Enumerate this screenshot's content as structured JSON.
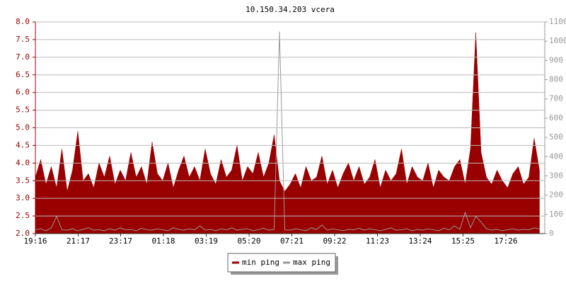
{
  "chart_data": {
    "type": "area-line",
    "title": "10.150.34.203 vcera",
    "x": [
      0,
      15,
      30,
      45,
      60,
      75,
      90,
      105,
      120,
      135,
      150,
      165,
      180,
      195,
      210,
      225,
      240,
      255,
      270,
      285,
      300,
      315,
      330,
      345,
      360,
      375,
      390,
      405,
      420,
      435,
      450,
      465,
      480,
      495,
      510,
      525,
      540,
      555,
      570,
      585,
      600,
      615,
      630,
      645,
      660,
      675,
      690,
      705,
      720,
      735,
      750,
      765,
      780,
      795,
      810,
      825,
      840,
      855,
      870,
      885,
      900,
      915,
      930,
      945,
      960,
      975,
      990,
      1005,
      1020,
      1035,
      1050,
      1065,
      1080,
      1095,
      1110,
      1125,
      1140,
      1155,
      1170,
      1185,
      1200,
      1215,
      1230,
      1245,
      1260,
      1275,
      1290,
      1305,
      1320,
      1335,
      1350,
      1365,
      1380,
      1395,
      1410,
      1425
    ],
    "xlim": [
      0,
      1440
    ],
    "xticks": [
      {
        "value": 0,
        "label": "19:16"
      },
      {
        "value": 121,
        "label": "21:17"
      },
      {
        "value": 241,
        "label": "23:17"
      },
      {
        "value": 362,
        "label": "01:18"
      },
      {
        "value": 483,
        "label": "03:19"
      },
      {
        "value": 604,
        "label": "05:20"
      },
      {
        "value": 725,
        "label": "07:21"
      },
      {
        "value": 846,
        "label": "09:22"
      },
      {
        "value": 967,
        "label": "11:23"
      },
      {
        "value": 1088,
        "label": "13:24"
      },
      {
        "value": 1209,
        "label": "15:25"
      },
      {
        "value": 1330,
        "label": "17:26"
      }
    ],
    "ylim": [
      2,
      8
    ],
    "yticks": [
      {
        "value": 2,
        "label": "2.0"
      },
      2.5,
      {
        "value": 3,
        "label": "3.0"
      },
      3.5,
      {
        "value": 4,
        "label": "4.0"
      },
      4.5,
      {
        "value": 5,
        "label": "5.0"
      },
      5.5,
      {
        "value": 6,
        "label": "6.0"
      },
      6.5,
      {
        "value": 7,
        "label": "7.0"
      },
      7.5,
      {
        "value": 8,
        "label": "8.0"
      }
    ],
    "y2lim": [
      0,
      1100
    ],
    "y2ticks": [
      0,
      100,
      200,
      300,
      400,
      500,
      600,
      700,
      800,
      900,
      1000,
      1100
    ],
    "grid": true,
    "series": [
      {
        "name": "min ping",
        "color": "#990000",
        "kind": "area",
        "values": [
          3.6,
          4.1,
          3.4,
          3.9,
          3.3,
          4.4,
          3.2,
          3.8,
          4.9,
          3.5,
          3.7,
          3.3,
          4.0,
          3.6,
          4.2,
          3.4,
          3.8,
          3.5,
          4.3,
          3.6,
          3.9,
          3.4,
          4.6,
          3.7,
          3.5,
          4.0,
          3.3,
          3.8,
          4.2,
          3.6,
          3.9,
          3.5,
          4.4,
          3.7,
          3.4,
          4.1,
          3.6,
          3.8,
          4.5,
          3.5,
          3.9,
          3.7,
          4.3,
          3.6,
          4.0,
          4.8,
          3.5,
          3.2,
          3.4,
          3.7,
          3.3,
          3.9,
          3.5,
          3.6,
          4.2,
          3.4,
          3.8,
          3.3,
          3.7,
          4.0,
          3.5,
          3.9,
          3.4,
          3.6,
          4.1,
          3.3,
          3.8,
          3.5,
          3.7,
          4.4,
          3.4,
          3.9,
          3.6,
          3.5,
          4.0,
          3.3,
          3.8,
          3.6,
          3.5,
          3.9,
          4.1,
          3.4,
          4.4,
          7.7,
          4.3,
          3.6,
          3.4,
          3.8,
          3.5,
          3.3,
          3.7,
          3.9,
          3.4,
          3.6,
          4.7,
          3.8
        ]
      },
      {
        "name": "max ping",
        "color": "#999999",
        "kind": "line",
        "axis": "y2",
        "values": [
          20,
          25,
          15,
          30,
          90,
          20,
          18,
          25,
          15,
          22,
          30,
          18,
          20,
          15,
          25,
          18,
          30,
          20,
          22,
          15,
          28,
          20,
          18,
          25,
          20,
          15,
          30,
          22,
          18,
          25,
          20,
          40,
          18,
          22,
          15,
          25,
          20,
          30,
          18,
          22,
          25,
          15,
          20,
          28,
          18,
          22,
          1050,
          20,
          18,
          25,
          20,
          15,
          30,
          22,
          45,
          18,
          25,
          20,
          15,
          22,
          20,
          28,
          18,
          25,
          20,
          15,
          22,
          30,
          18,
          20,
          25,
          15,
          22,
          18,
          25,
          20,
          15,
          28,
          20,
          40,
          22,
          110,
          30,
          90,
          60,
          25,
          18,
          22,
          15,
          20,
          25,
          18,
          22,
          20,
          30,
          25
        ]
      }
    ]
  }
}
